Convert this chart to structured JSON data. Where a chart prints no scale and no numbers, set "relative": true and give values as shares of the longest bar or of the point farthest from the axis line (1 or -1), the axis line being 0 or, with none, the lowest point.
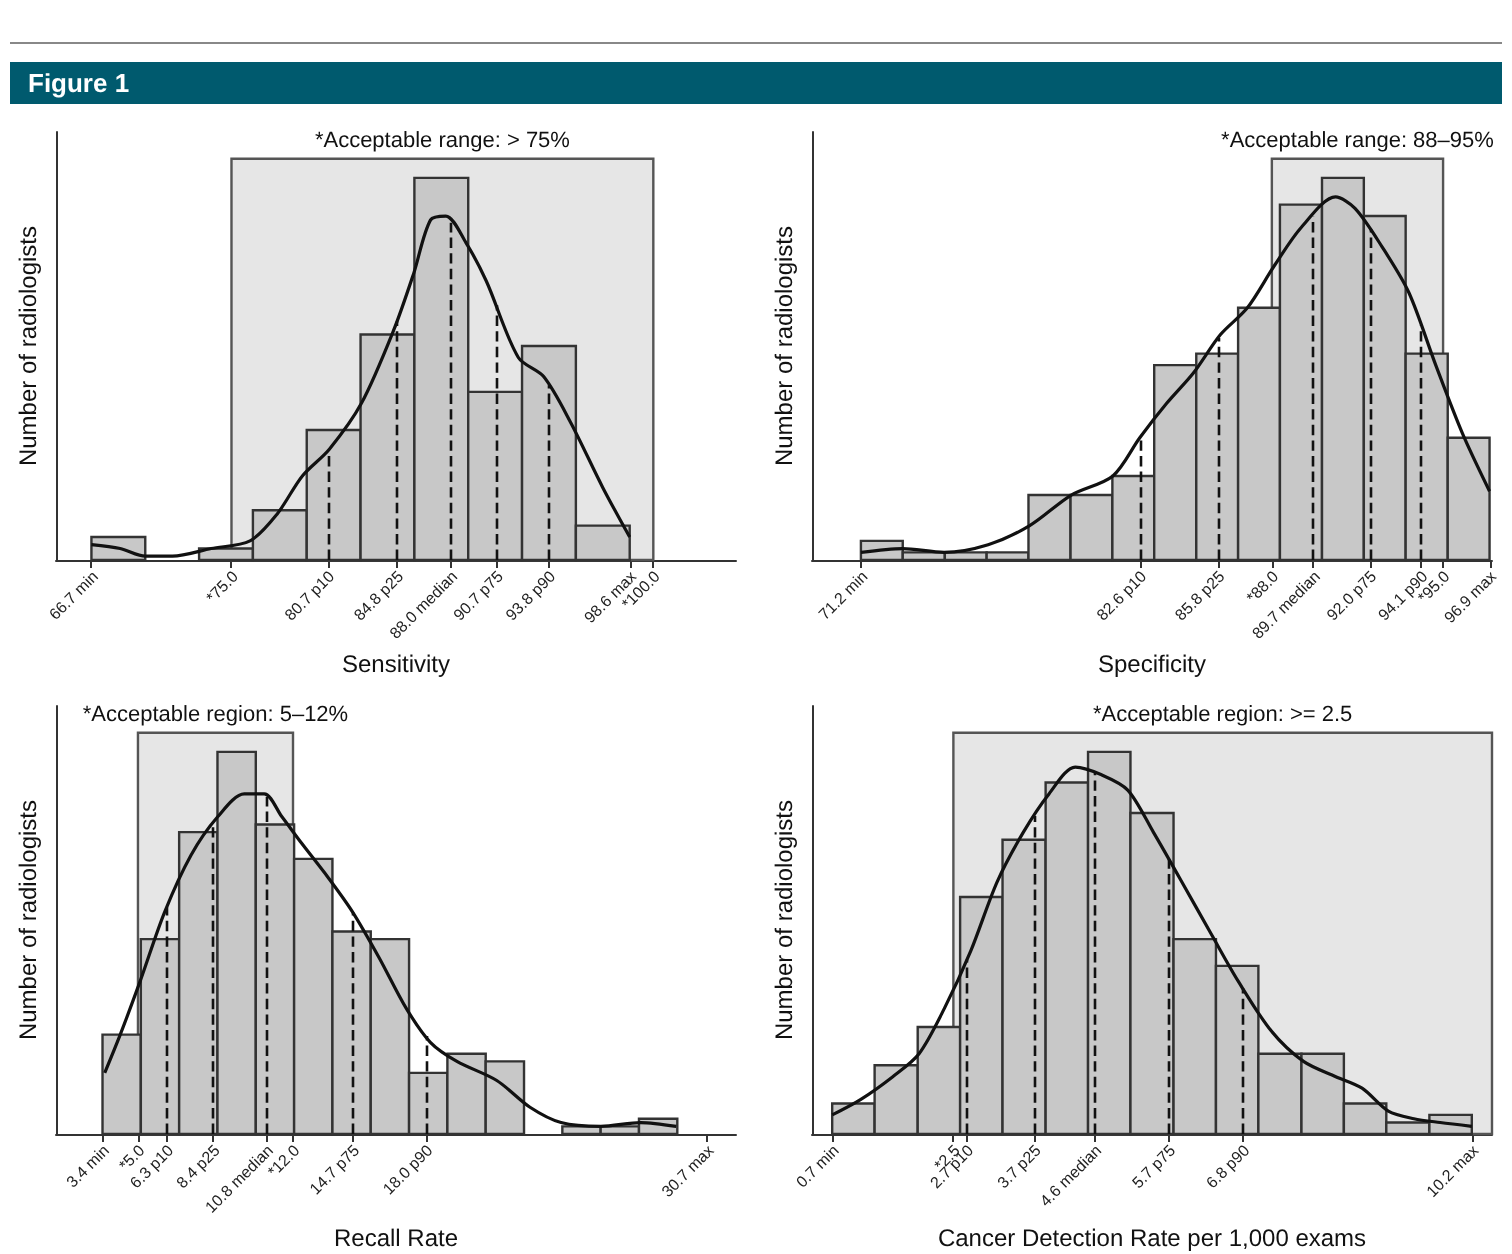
{
  "chart_data": [
    {
      "type": "histogram",
      "annotations": [
        "Figure 1"
      ],
      "xlabel": "Sensitivity",
      "ylabel": "Number of radiologists",
      "relative": true,
      "marker": "none",
      "grid": false,
      "bins": [
        66.7,
        69.89,
        73.08,
        76.27,
        79.46,
        82.65,
        85.84,
        89.03,
        92.22,
        95.41,
        98.6
      ],
      "series": [
        {
          "type": "histogram",
          "color": "#c8c8c8",
          "values": [
            0.06,
            0,
            0.03,
            0.13,
            0.34,
            0.59,
            1,
            0.44,
            0.56,
            0.09
          ]
        },
        {
          "type": "line",
          "color": "#111111",
          "x": [
            66.7,
            68.4,
            69.9,
            71.5,
            73.8,
            76.1,
            77.7,
            79.2,
            80.8,
            82.7,
            84.6,
            85.8,
            86.8,
            87.7,
            88.9,
            90.1,
            92.0,
            93.5,
            95.1,
            97.0,
            98.6
          ],
          "values": [
            0.04,
            0.03,
            0.01,
            0.01,
            0.03,
            0.05,
            0.12,
            0.22,
            0.29,
            0.41,
            0.6,
            0.75,
            0.89,
            0.9,
            0.83,
            0.73,
            0.53,
            0.48,
            0.36,
            0.19,
            0.06
          ]
        }
      ],
      "xlim": [
        64.6,
        104.9
      ],
      "xticks": [
        {
          "value": 66.7,
          "label": "66.7 min"
        },
        {
          "value": 75.0,
          "label": "*75.0"
        },
        {
          "value": 80.7,
          "label": "80.7 p10"
        },
        {
          "value": 84.8,
          "label": "84.8 p25"
        },
        {
          "value": 88.0,
          "label": "88.0 median"
        },
        {
          "value": 90.7,
          "label": "90.7 p75"
        },
        {
          "value": 93.8,
          "label": "93.8 p90"
        },
        {
          "value": 98.6,
          "label": "98.6 max"
        },
        {
          "value": 100.0,
          "label": "*100.0"
        }
      ],
      "ref_lines": [
        {
          "axis": "x",
          "value": 80.7,
          "line_style": "dashed"
        },
        {
          "axis": "x",
          "value": 84.8,
          "line_style": "dashed"
        },
        {
          "axis": "x",
          "value": 88.0,
          "line_style": "dashed"
        },
        {
          "axis": "x",
          "value": 90.7,
          "line_style": "dashed"
        },
        {
          "axis": "x",
          "value": 93.8,
          "line_style": "dashed"
        }
      ],
      "bands": [
        {
          "axis": "x",
          "from": 75.0,
          "to": 100.0,
          "label": "*Acceptable range: > 75%",
          "color": "#e6e6e6"
        }
      ]
    },
    {
      "type": "histogram",
      "xlabel": "Specificity",
      "ylabel": "Number of radiologists",
      "relative": true,
      "marker": "none",
      "grid": false,
      "bins": [
        71.2,
        72.91,
        74.63,
        76.34,
        78.05,
        79.77,
        81.48,
        83.19,
        84.91,
        86.62,
        88.33,
        90.05,
        91.76,
        93.47,
        95.19,
        96.9
      ],
      "series": [
        {
          "type": "histogram",
          "color": "#c8c8c8",
          "values": [
            0.05,
            0.02,
            0.02,
            0.02,
            0.17,
            0.17,
            0.22,
            0.51,
            0.54,
            0.66,
            0.93,
            1,
            0.9,
            0.54,
            0.32
          ]
        },
        {
          "type": "line",
          "color": "#111111",
          "x": [
            71.2,
            72.9,
            74.6,
            76.4,
            78.1,
            79.8,
            81.5,
            82.6,
            83.7,
            84.8,
            85.9,
            87.0,
            88.1,
            89.2,
            90.6,
            91.4,
            92.5,
            93.6,
            94.7,
            95.8,
            96.9
          ],
          "values": [
            0.02,
            0.03,
            0.02,
            0.04,
            0.09,
            0.17,
            0.22,
            0.32,
            0.41,
            0.49,
            0.59,
            0.66,
            0.77,
            0.87,
            0.95,
            0.92,
            0.82,
            0.7,
            0.51,
            0.33,
            0.18
          ]
        }
      ],
      "xlim": [
        69.2,
        97.0
      ],
      "xticks": [
        {
          "value": 71.2,
          "label": "71.2 min"
        },
        {
          "value": 82.6,
          "label": "82.6 p10"
        },
        {
          "value": 85.8,
          "label": "85.8 p25"
        },
        {
          "value": 88.0,
          "label": "*88.0"
        },
        {
          "value": 89.7,
          "label": "89.7 median"
        },
        {
          "value": 92.0,
          "label": "92.0 p75"
        },
        {
          "value": 94.1,
          "label": "94.1 p90"
        },
        {
          "value": 95.0,
          "label": "*95.0"
        },
        {
          "value": 96.9,
          "label": "96.9 max"
        }
      ],
      "ref_lines": [
        {
          "axis": "x",
          "value": 82.6,
          "line_style": "dashed"
        },
        {
          "axis": "x",
          "value": 85.8,
          "line_style": "dashed"
        },
        {
          "axis": "x",
          "value": 89.7,
          "line_style": "dashed"
        },
        {
          "axis": "x",
          "value": 92.0,
          "line_style": "dashed"
        },
        {
          "axis": "x",
          "value": 94.1,
          "line_style": "dashed"
        }
      ],
      "bands": [
        {
          "axis": "x",
          "from": 88.0,
          "to": 95.0,
          "label": "*Acceptable range: 88–95%",
          "color": "#e6e6e6"
        }
      ]
    },
    {
      "type": "histogram",
      "xlabel": "Recall Rate",
      "ylabel": "Number of radiologists",
      "relative": true,
      "marker": "none",
      "grid": false,
      "bins": [
        3.4,
        5.13,
        6.86,
        8.59,
        10.32,
        12.05,
        13.78,
        15.51,
        17.24,
        18.97,
        20.7,
        22.43,
        24.16,
        25.89,
        27.62,
        29.35
      ],
      "series": [
        {
          "type": "histogram",
          "color": "#c8c8c8",
          "values": [
            0.26,
            0.51,
            0.79,
            1,
            0.81,
            0.72,
            0.53,
            0.51,
            0.16,
            0.21,
            0.19,
            0,
            0.02,
            0.02,
            0.04
          ]
        },
        {
          "type": "line",
          "color": "#111111",
          "x": [
            3.5,
            4.2,
            5.1,
            6.2,
            7.4,
            8.6,
            9.8,
            10.7,
            11.5,
            12.4,
            13.6,
            14.7,
            15.9,
            17.1,
            18.2,
            19.4,
            21.2,
            22.7,
            24.1,
            25.9,
            27.7,
            29.3
          ],
          "values": [
            0.16,
            0.26,
            0.4,
            0.58,
            0.73,
            0.83,
            0.89,
            0.89,
            0.83,
            0.76,
            0.67,
            0.58,
            0.46,
            0.33,
            0.24,
            0.19,
            0.14,
            0.07,
            0.03,
            0.02,
            0.03,
            0.02
          ]
        }
      ],
      "xlim": [
        1.3,
        32.0
      ],
      "xticks": [
        {
          "value": 3.4,
          "label": "3.4 min"
        },
        {
          "value": 5.0,
          "label": "*5.0"
        },
        {
          "value": 6.3,
          "label": "6.3 p10"
        },
        {
          "value": 8.4,
          "label": "8.4 p25"
        },
        {
          "value": 10.8,
          "label": "10.8 median"
        },
        {
          "value": 12.0,
          "label": "*12.0"
        },
        {
          "value": 14.7,
          "label": "14.7 p75"
        },
        {
          "value": 18.0,
          "label": "18.0 p90"
        },
        {
          "value": 30.7,
          "label": "30.7 max"
        }
      ],
      "ref_lines": [
        {
          "axis": "x",
          "value": 6.3,
          "line_style": "dashed"
        },
        {
          "axis": "x",
          "value": 8.4,
          "line_style": "dashed"
        },
        {
          "axis": "x",
          "value": 10.8,
          "line_style": "dashed"
        },
        {
          "axis": "x",
          "value": 14.7,
          "line_style": "dashed"
        },
        {
          "axis": "x",
          "value": 18.0,
          "line_style": "dashed"
        }
      ],
      "bands": [
        {
          "axis": "x",
          "from": 5.0,
          "to": 12.0,
          "label": "*Acceptable region: 5–12%",
          "color": "#e6e6e6"
        }
      ]
    },
    {
      "type": "histogram",
      "xlabel": "Cancer Detection Rate per 1,000 exams",
      "ylabel": "Number of radiologists",
      "relative": true,
      "marker": "none",
      "grid": false,
      "bins": [
        0.7,
        1.33,
        1.97,
        2.6,
        3.23,
        3.87,
        4.5,
        5.13,
        5.77,
        6.4,
        7.03,
        7.67,
        8.3,
        8.93,
        9.57,
        10.2
      ],
      "series": [
        {
          "type": "histogram",
          "color": "#c8c8c8",
          "values": [
            0.08,
            0.18,
            0.28,
            0.62,
            0.77,
            0.92,
            1,
            0.84,
            0.51,
            0.44,
            0.21,
            0.21,
            0.08,
            0.03,
            0.05
          ]
        },
        {
          "type": "line",
          "color": "#111111",
          "x": [
            0.7,
            1.12,
            1.6,
            1.99,
            2.37,
            2.76,
            3.15,
            3.54,
            3.92,
            4.31,
            4.7,
            5.09,
            5.47,
            5.86,
            6.34,
            6.73,
            7.22,
            7.7,
            8.18,
            8.57,
            8.96,
            9.34,
            9.73,
            10.2
          ],
          "values": [
            0.05,
            0.09,
            0.15,
            0.21,
            0.33,
            0.48,
            0.66,
            0.79,
            0.89,
            0.96,
            0.94,
            0.9,
            0.79,
            0.67,
            0.52,
            0.4,
            0.27,
            0.19,
            0.15,
            0.12,
            0.06,
            0.04,
            0.03,
            0.02
          ]
        }
      ],
      "xlim": [
        0.4,
        10.5
      ],
      "xticks": [
        {
          "value": 0.7,
          "label": "0.7 min"
        },
        {
          "value": 2.5,
          "label": "*2.5"
        },
        {
          "value": 2.7,
          "label": "2.7 p10"
        },
        {
          "value": 3.7,
          "label": "3.7 p25"
        },
        {
          "value": 4.6,
          "label": "4.6 median"
        },
        {
          "value": 5.7,
          "label": "5.7 p75"
        },
        {
          "value": 6.8,
          "label": "6.8 p90"
        },
        {
          "value": 10.2,
          "label": "10.2 max"
        }
      ],
      "ref_lines": [
        {
          "axis": "x",
          "value": 2.7,
          "line_style": "dashed"
        },
        {
          "axis": "x",
          "value": 3.7,
          "line_style": "dashed"
        },
        {
          "axis": "x",
          "value": 4.6,
          "line_style": "dashed"
        },
        {
          "axis": "x",
          "value": 5.7,
          "line_style": "dashed"
        },
        {
          "axis": "x",
          "value": 6.8,
          "line_style": "dashed"
        }
      ],
      "bands": [
        {
          "axis": "x",
          "from": 2.5,
          "to": 10.5,
          "label": "*Acceptable region: >= 2.5",
          "color": "#e6e6e6"
        }
      ]
    }
  ]
}
